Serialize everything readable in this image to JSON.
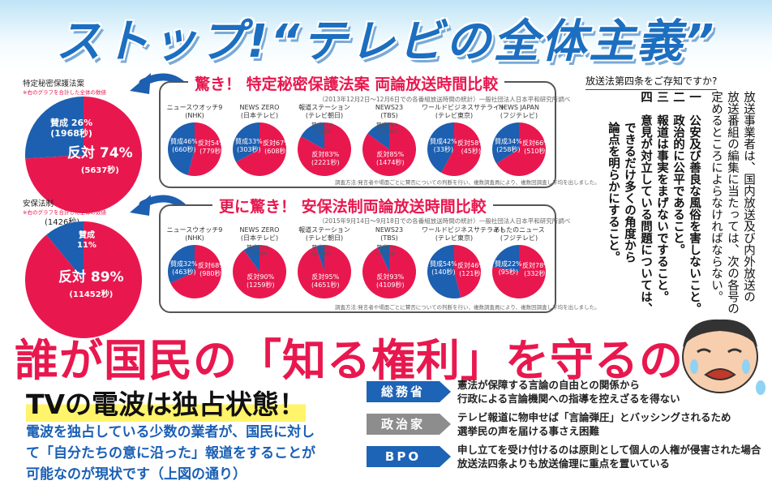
{
  "headline": "ストップ!“テレビの全体主義”",
  "chart_data": [
    {
      "type": "pie",
      "title": "驚き！ 特定秘密保護法案 両論放送時間比較",
      "subtitle": "（2013年12月2日～12月6日での各番組放送時間の統計）一般社団法人日本平和研究所調べ",
      "summary": {
        "label": "特定秘密保護法案",
        "note": "※右のグラフを合計した全体の数値",
        "slices": [
          {
            "name": "賛成",
            "value": 26,
            "seconds": "1968秒"
          },
          {
            "name": "反対",
            "value": 74,
            "seconds": "5637秒"
          }
        ]
      },
      "stations": [
        {
          "name": "ニュースウオッチ9",
          "network": "(NHK)",
          "for_pct": 46,
          "for_label": "賛成46%",
          "for_sec": "(660秒)",
          "against_label": "反対54%",
          "against_sec": "(779秒)"
        },
        {
          "name": "NEWS ZERO",
          "network": "(日本テレビ)",
          "for_pct": 33,
          "for_label": "賛成33%",
          "for_sec": "(303秒)",
          "against_label": "反対67%",
          "against_sec": "(608秒)"
        },
        {
          "name": "報道ステーション",
          "network": "(テレビ朝日)",
          "for_pct": 17,
          "for_label": "賛成17%",
          "for_sec": "(458秒)",
          "against_label": "反対83%",
          "against_sec": "(2221秒)"
        },
        {
          "name": "NEWS23",
          "network": "(TBS)",
          "for_pct": 15,
          "for_label": "賛成15%",
          "for_sec": "(256秒)",
          "against_label": "反対85%",
          "against_sec": "(1474秒)"
        },
        {
          "name": "ワールドビジネスサテライト",
          "network": "(テレビ東京)",
          "for_pct": 42,
          "for_label": "賛成42%",
          "for_sec": "(33秒)",
          "against_label": "反対58%",
          "against_sec": "(45秒)"
        },
        {
          "name": "NEWS JAPAN",
          "network": "(フジテレビ)",
          "for_pct": 34,
          "for_label": "賛成34%",
          "for_sec": "(258秒)",
          "against_label": "反対66%",
          "against_sec": "(510秒)"
        }
      ],
      "footnote": "調査方法:発言者や場面ごとに賛否についての判断を行い、複数調査員により、複数回調査し平均を出しました。"
    },
    {
      "type": "pie",
      "title": "更に驚き！ 安保法制両論放送時間比較",
      "subtitle": "（2015年9月14日～9月18日での各番組放送時間の統計）一般社団法人日本平和研究所調べ",
      "summary": {
        "label": "安保法制",
        "note": "※右のグラフを合計した全体の数値",
        "slices": [
          {
            "name": "賛成",
            "value": 11,
            "seconds": "1426秒"
          },
          {
            "name": "反対",
            "value": 89,
            "seconds": "11452秒"
          }
        ]
      },
      "stations": [
        {
          "name": "ニュースウオッチ9",
          "network": "(NHK)",
          "for_pct": 32,
          "for_label": "賛成32%",
          "for_sec": "(463秒)",
          "against_label": "反対68%",
          "against_sec": "(980秒)"
        },
        {
          "name": "NEWS ZERO",
          "network": "(日本テレビ)",
          "for_pct": 10,
          "for_label": "賛成10%",
          "for_sec": "(138秒)",
          "against_label": "反対90%",
          "against_sec": "(1259秒)"
        },
        {
          "name": "報道ステーション",
          "network": "(テレビ朝日)",
          "for_pct": 5,
          "for_label": "賛成5%",
          "for_sec": "(265秒)",
          "against_label": "反対95%",
          "against_sec": "(4651秒)"
        },
        {
          "name": "NEWS23",
          "network": "(TBS)",
          "for_pct": 7,
          "for_label": "賛成7%",
          "for_sec": "(325秒)",
          "against_label": "反対93%",
          "against_sec": "(4109秒)"
        },
        {
          "name": "ワールドビジネスサテライト",
          "network": "(テレビ東京)",
          "for_pct": 54,
          "for_label": "賛成54%",
          "for_sec": "(140秒)",
          "against_label": "反対46%",
          "against_sec": "(121秒)"
        },
        {
          "name": "あしたのニュース",
          "network": "(フジテレビ)",
          "for_pct": 22,
          "for_label": "賛成22%",
          "for_sec": "(95秒)",
          "against_label": "反対78%",
          "against_sec": "(332秒)"
        }
      ],
      "footnote": "調査方法:発言者や場面ごとに賛否についての判断を行い、複数調査員により、複数回調査し平均を出しました。"
    }
  ],
  "law": {
    "heading": "放送法第四条をご存知ですか?",
    "intro": [
      "放送事業者は、国内放送及び内外放送の",
      "放送番組の編集に当たっては、次の各号の",
      "定めるところによらなければならない。"
    ],
    "items": [
      {
        "num": "一",
        "lines": [
          "公安及び善良な風俗を害しないこと。"
        ]
      },
      {
        "num": "二",
        "lines": [
          "政治的に公平であること。"
        ]
      },
      {
        "num": "三",
        "lines": [
          "報道は事実をまげないですること。"
        ]
      },
      {
        "num": "四",
        "lines": [
          "意見が対立している問題については、",
          "できるだけ多くの角度から",
          "論点を明らかにすること。"
        ]
      }
    ]
  },
  "main": {
    "title": "誰が国民の「知る権利」を守るの?",
    "subtitle": "TVの電波は独占状態！",
    "body": [
      "電波を独占している少数の業者が、国民に対し",
      "て「自分たちの意に沿った」報道をすることが",
      "可能なのが現状です（上図の通り）"
    ]
  },
  "orgs": [
    {
      "name": "総務省",
      "color": "#1d63b6",
      "lines": [
        "憲法が保障する言論の自由との関係から",
        "行政による言論機関への指導を控えざるを得ない"
      ]
    },
    {
      "name": "政治家",
      "color": "#8d8d8d",
      "lines": [
        "テレビ報道に物申せば「言論弾圧」とバッシングされるため",
        "選挙民の声を届ける事さえ困難"
      ]
    },
    {
      "name": "BPO",
      "color": "#1d63b6",
      "lines": [
        "申し立てを受け付けるのは原則として個人の人権が侵害された場合",
        "放送法四条よりも放送倫理に重点を置いている"
      ]
    }
  ],
  "colors": {
    "for": "#1d5fb0",
    "against": "#e8184f",
    "accent_blue": "#1c6fc0"
  }
}
